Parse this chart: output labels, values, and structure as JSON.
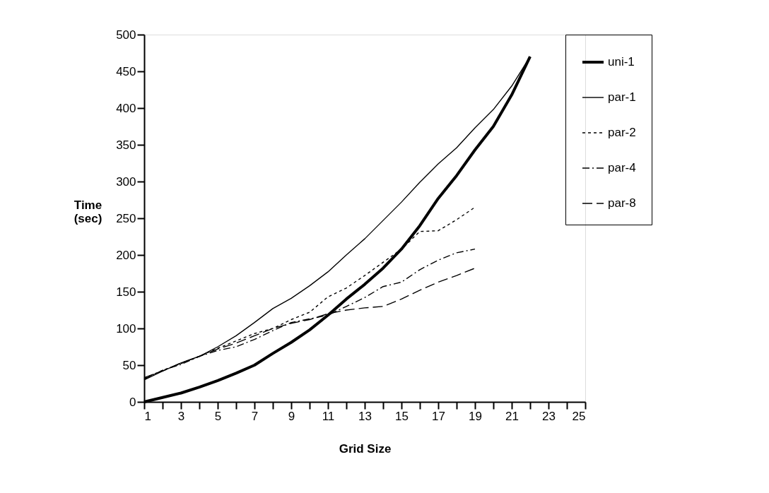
{
  "chart_data": {
    "type": "line",
    "xlabel": "Grid Size",
    "ylabel": "Time (sec)",
    "x": [
      1,
      2,
      3,
      4,
      5,
      6,
      7,
      8,
      9,
      10,
      11,
      12,
      13,
      14,
      15,
      16,
      17,
      18,
      19,
      20,
      21,
      22
    ],
    "series": [
      {
        "name": "uni-1",
        "color": "#000000",
        "line_style": "solid",
        "values": [
          0,
          6,
          12,
          20,
          29,
          39,
          50,
          66,
          81,
          98,
          118,
          140,
          160,
          182,
          208,
          240,
          277,
          308,
          343,
          375,
          418,
          470
        ]
      },
      {
        "name": "par-1",
        "color": "#000000",
        "line_style": "solid",
        "values": [
          30,
          42,
          53,
          62,
          75,
          90,
          108,
          127,
          141,
          158,
          177,
          200,
          222,
          247,
          272,
          299,
          324,
          346,
          373,
          398,
          430,
          470
        ]
      },
      {
        "name": "par-2",
        "color": "#000000",
        "line_style": "dotted",
        "values": [
          32,
          43,
          52,
          62,
          73,
          83,
          93,
          100,
          112,
          122,
          143,
          155,
          172,
          190,
          208,
          232,
          233,
          248,
          265,
          null,
          null,
          null
        ]
      },
      {
        "name": "par-4",
        "color": "#000000",
        "line_style": "dashed",
        "values": [
          31,
          43,
          51,
          62,
          70,
          75,
          85,
          97,
          108,
          113,
          118,
          130,
          142,
          157,
          163,
          180,
          193,
          203,
          208,
          null,
          null,
          null
        ]
      },
      {
        "name": "par-8",
        "color": "#000000",
        "line_style": "dashed",
        "values": [
          33,
          42,
          53,
          62,
          72,
          80,
          90,
          100,
          107,
          112,
          120,
          125,
          128,
          130,
          140,
          152,
          163,
          172,
          182,
          null,
          null,
          null
        ]
      }
    ],
    "xlim": [
      1,
      25
    ],
    "xticks": [
      1,
      {
        "value": 2,
        "label": null
      },
      3,
      {
        "value": 4,
        "label": null
      },
      5,
      {
        "value": 6,
        "label": null
      },
      7,
      {
        "value": 8,
        "label": null
      },
      9,
      {
        "value": 10,
        "label": null
      },
      11,
      {
        "value": 12,
        "label": null
      },
      13,
      {
        "value": 14,
        "label": null
      },
      15,
      {
        "value": 16,
        "label": null
      },
      17,
      {
        "value": 18,
        "label": null
      },
      19,
      {
        "value": 20,
        "label": null
      },
      21,
      {
        "value": 22,
        "label": null
      },
      23,
      {
        "value": 24,
        "label": null
      },
      25
    ],
    "ylim": [
      0,
      500
    ],
    "yticks": [
      0,
      50,
      100,
      150,
      200,
      250,
      300,
      350,
      400,
      450,
      500
    ],
    "grid": false,
    "legend": "right",
    "marker": "none"
  }
}
